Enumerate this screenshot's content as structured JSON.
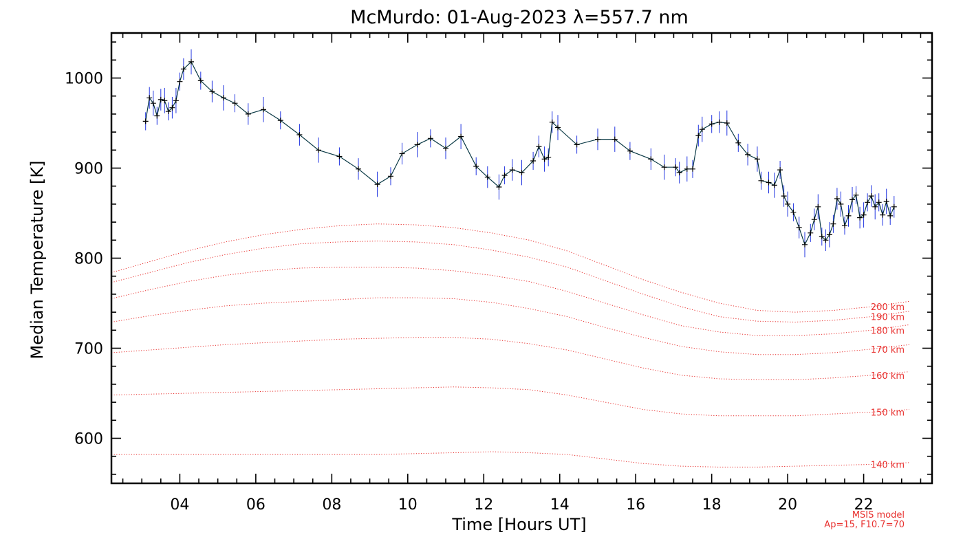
{
  "chart_data": {
    "type": "line",
    "title": "McMurdo: 01-Aug-2023 λ=557.7 nm",
    "xlabel": "Time [Hours UT]",
    "ylabel": "Median Temperature [K]",
    "xlim": [
      2.2,
      23.8
    ],
    "ylim": [
      550,
      1050
    ],
    "xticks": [
      {
        "value": 4,
        "label": "04"
      },
      {
        "value": 6,
        "label": "06"
      },
      {
        "value": 8,
        "label": "08"
      },
      {
        "value": 10,
        "label": "10"
      },
      {
        "value": 12,
        "label": "12"
      },
      {
        "value": 14,
        "label": "14"
      },
      {
        "value": 16,
        "label": "16"
      },
      {
        "value": 18,
        "label": "18"
      },
      {
        "value": 20,
        "label": "20"
      },
      {
        "value": 22,
        "label": "22"
      }
    ],
    "yticks": [
      {
        "value": 600,
        "label": "600"
      },
      {
        "value": 700,
        "label": "700"
      },
      {
        "value": 800,
        "label": "800"
      },
      {
        "value": 900,
        "label": "900"
      },
      {
        "value": 1000,
        "label": "1000"
      }
    ],
    "series": [
      {
        "name": "Median Temperature",
        "color": "#000000",
        "errorbar_color": "#1f33e0",
        "x": [
          3.1,
          3.2,
          3.3,
          3.4,
          3.5,
          3.6,
          3.7,
          3.8,
          3.9,
          4.0,
          4.1,
          4.3,
          4.55,
          4.85,
          5.15,
          5.45,
          5.8,
          6.2,
          6.65,
          7.15,
          7.65,
          8.2,
          8.7,
          9.2,
          9.55,
          9.85,
          10.25,
          10.6,
          11.0,
          11.4,
          11.8,
          12.1,
          12.4,
          12.55,
          12.75,
          13.0,
          13.3,
          13.45,
          13.6,
          13.7,
          13.8,
          13.95,
          14.45,
          15.0,
          15.45,
          15.85,
          16.4,
          16.75,
          17.05,
          17.15,
          17.35,
          17.5,
          17.65,
          17.75,
          18.0,
          18.2,
          18.4,
          18.7,
          18.95,
          19.2,
          19.3,
          19.5,
          19.65,
          19.8,
          19.9,
          20.0,
          20.15,
          20.3,
          20.45,
          20.6,
          20.7,
          20.8,
          20.9,
          21.0,
          21.1,
          21.2,
          21.3,
          21.4,
          21.5,
          21.6,
          21.7,
          21.8,
          21.9,
          22.0,
          22.1,
          22.2,
          22.3,
          22.4,
          22.5,
          22.6,
          22.7,
          22.8
        ],
        "y": [
          952,
          978,
          972,
          958,
          976,
          975,
          963,
          967,
          975,
          996,
          1010,
          1018,
          997,
          985,
          978,
          972,
          960,
          965,
          953,
          937,
          920,
          913,
          899,
          882,
          891,
          916,
          926,
          933,
          922,
          935,
          902,
          890,
          879,
          892,
          898,
          895,
          908,
          924,
          910,
          912,
          951,
          945,
          926,
          932,
          932,
          919,
          910,
          901,
          901,
          895,
          899,
          899,
          936,
          943,
          949,
          951,
          950,
          928,
          915,
          910,
          886,
          884,
          881,
          898,
          869,
          860,
          851,
          834,
          815,
          828,
          843,
          857,
          824,
          820,
          826,
          838,
          866,
          860,
          836,
          847,
          865,
          870,
          845,
          848,
          862,
          869,
          857,
          862,
          848,
          863,
          847,
          857
        ]
      }
    ],
    "msis_curves": [
      {
        "label": "200 km",
        "values": [
          784,
          796,
          808,
          818,
          826,
          832,
          836,
          838,
          837,
          834,
          828,
          820,
          808,
          792,
          776,
          762,
          750,
          742,
          740,
          742,
          746,
          752
        ]
      },
      {
        "label": "190 km",
        "values": [
          773,
          784,
          795,
          804,
          811,
          816,
          818,
          819,
          818,
          815,
          809,
          801,
          790,
          775,
          760,
          746,
          735,
          730,
          729,
          731,
          735,
          741
        ]
      },
      {
        "label": "180 km",
        "values": [
          755,
          765,
          774,
          781,
          786,
          789,
          790,
          790,
          789,
          786,
          781,
          774,
          763,
          750,
          737,
          725,
          718,
          714,
          714,
          716,
          720,
          726
        ]
      },
      {
        "label": "170 km",
        "values": [
          729,
          736,
          742,
          747,
          750,
          752,
          754,
          756,
          756,
          755,
          751,
          744,
          735,
          723,
          712,
          702,
          696,
          693,
          693,
          695,
          699,
          704
        ]
      },
      {
        "label": "160 km",
        "values": [
          695,
          698,
          701,
          704,
          706,
          708,
          710,
          711,
          712,
          712,
          710,
          705,
          698,
          688,
          678,
          670,
          666,
          665,
          665,
          667,
          670,
          674
        ]
      },
      {
        "label": "150 km",
        "values": [
          648,
          649,
          650,
          651,
          652,
          653,
          654,
          655,
          656,
          657,
          656,
          654,
          648,
          640,
          632,
          627,
          625,
          625,
          625,
          627,
          629,
          632
        ]
      },
      {
        "label": "140 km",
        "values": [
          582,
          582,
          582,
          582,
          582,
          582,
          582,
          582,
          583,
          584,
          585,
          584,
          582,
          577,
          572,
          569,
          568,
          568,
          569,
          570,
          571,
          573
        ]
      }
    ],
    "msis_x": [
      2.2,
      3.2,
      4.2,
      5.2,
      6.2,
      7.2,
      8.2,
      9.2,
      10.2,
      11.2,
      12.2,
      13.2,
      14.2,
      15.2,
      16.2,
      17.2,
      18.2,
      19.2,
      20.2,
      21.2,
      22.2,
      23.2
    ],
    "annotations": [
      "MSIS model",
      "Ap=15, F10.7=70"
    ]
  },
  "colors": {
    "msis": "#e8312f",
    "errorbar": "#1f33e0",
    "line": "#000000",
    "axes": "#000000"
  }
}
